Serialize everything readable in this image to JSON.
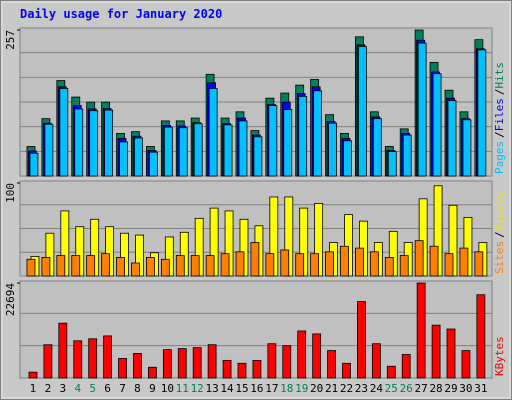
{
  "chart_data": [
    {
      "type": "bar",
      "title": "Daily usage for January 2020",
      "legend_separator": "/",
      "ylim": [
        0,
        257
      ],
      "yticks": [
        257
      ],
      "series": [
        {
          "name": "Hits",
          "color": "#00805c",
          "values": [
            52,
            101,
            168,
            139,
            130,
            130,
            75,
            78,
            52,
            97,
            97,
            102,
            179,
            102,
            113,
            80,
            137,
            146,
            160,
            170,
            108,
            75,
            245,
            113,
            52,
            83,
            257,
            200,
            151,
            113,
            240
          ]
        },
        {
          "name": "Files",
          "color": "#0000ff",
          "values": [
            44,
            93,
            157,
            124,
            118,
            119,
            66,
            70,
            45,
            89,
            88,
            94,
            164,
            92,
            102,
            72,
            126,
            130,
            145,
            157,
            96,
            66,
            231,
            104,
            45,
            75,
            239,
            183,
            137,
            101,
            224
          ]
        },
        {
          "name": "Pages",
          "color": "#00c0ff",
          "values": [
            40,
            91,
            154,
            118,
            115,
            116,
            60,
            67,
            42,
            86,
            85,
            92,
            154,
            90,
            97,
            69,
            124,
            117,
            140,
            150,
            93,
            62,
            228,
            101,
            43,
            72,
            234,
            180,
            133,
            99,
            222
          ]
        }
      ]
    },
    {
      "type": "bar",
      "ylim": [
        0,
        100
      ],
      "yticks": [
        100
      ],
      "series": [
        {
          "name": "Visits",
          "color": "#ffff00",
          "values": [
            21,
            46,
            70,
            53,
            61,
            53,
            46,
            44,
            25,
            42,
            47,
            62,
            73,
            70,
            61,
            54,
            85,
            85,
            73,
            78,
            36,
            66,
            59,
            36,
            48,
            36,
            83,
            97,
            76,
            63,
            36
          ]
        },
        {
          "name": "Sites",
          "color": "#ff8000",
          "values": [
            18,
            20,
            22,
            22,
            22,
            24,
            20,
            14,
            20,
            18,
            22,
            22,
            22,
            24,
            26,
            36,
            24,
            28,
            24,
            24,
            26,
            32,
            30,
            26,
            20,
            22,
            38,
            32,
            24,
            30,
            26
          ]
        }
      ]
    },
    {
      "type": "bar",
      "ylim": [
        0,
        22694
      ],
      "yticks": [
        22694
      ],
      "categories": [
        "1",
        "2",
        "3",
        "4",
        "5",
        "6",
        "7",
        "8",
        "9",
        "10",
        "11",
        "12",
        "13",
        "14",
        "15",
        "16",
        "17",
        "18",
        "19",
        "20",
        "21",
        "22",
        "23",
        "24",
        "25",
        "26",
        "27",
        "28",
        "29",
        "30",
        "31"
      ],
      "category_colors": [
        "#000000",
        "#000000",
        "#000000",
        "#00805c",
        "#00805c",
        "#000000",
        "#000000",
        "#000000",
        "#000000",
        "#000000",
        "#00805c",
        "#00805c",
        "#000000",
        "#000000",
        "#000000",
        "#000000",
        "#000000",
        "#00805c",
        "#00805c",
        "#000000",
        "#000000",
        "#000000",
        "#000000",
        "#000000",
        "#00805c",
        "#00805c",
        "#000000",
        "#000000",
        "#000000",
        "#000000",
        "#000000"
      ],
      "series": [
        {
          "name": "KBytes",
          "color": "#ff0000",
          "values": [
            1400,
            7950,
            13100,
            8890,
            9360,
            10060,
            4680,
            5850,
            2570,
            6780,
            7020,
            7250,
            7950,
            4210,
            3510,
            4210,
            8190,
            7720,
            11230,
            10530,
            6550,
            3510,
            18250,
            8190,
            2810,
            5620,
            22694,
            12630,
            11700,
            6550,
            19890
          ]
        }
      ]
    }
  ]
}
